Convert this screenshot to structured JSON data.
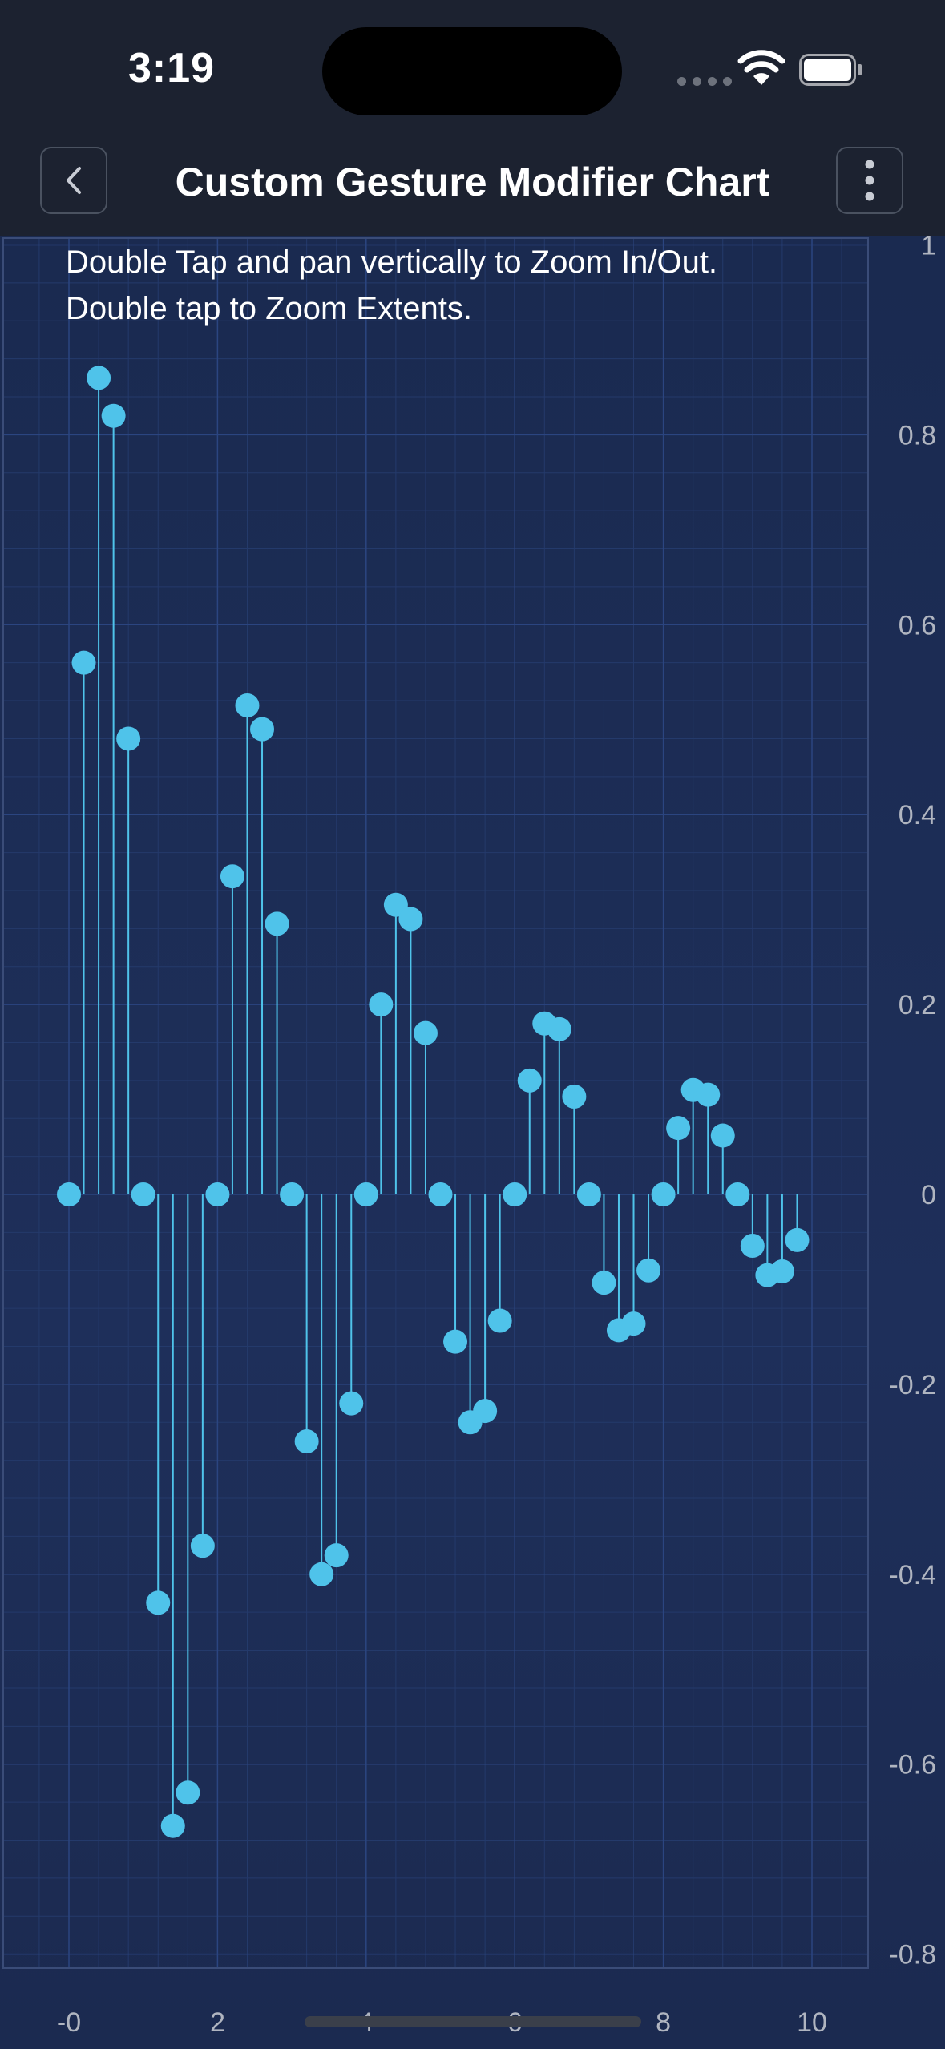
{
  "status_bar": {
    "time": "3:19"
  },
  "nav": {
    "title": "Custom Gesture Modifier Chart",
    "back_icon": "chevron-left-icon",
    "more_icon": "vertical-ellipsis-icon"
  },
  "instructions": {
    "line1": "Double Tap and pan vertically to Zoom In/Out.",
    "line2": "Double tap to Zoom Extents."
  },
  "colors": {
    "background": "#1c2230",
    "chart_bg": "#1e2f5a",
    "stem": "#4fc3ea",
    "marker": "#4fc3ea",
    "tick_label": "#b0b5c0"
  },
  "chart_data": {
    "type": "scatter",
    "style": "stem with circular markers",
    "x_tick_labels": [
      "-0",
      "2",
      "4",
      "6",
      "8",
      "10"
    ],
    "y_tick_labels": [
      "1",
      "0.8",
      "0.6",
      "0.4",
      "0.2",
      "0",
      "-0.2",
      "-0.4",
      "-0.6",
      "-0.8"
    ],
    "y_axis_position": "right",
    "xlim": [
      -0.4,
      10.7
    ],
    "ylim": [
      -0.82,
      1.02
    ],
    "grid": true,
    "series": [
      {
        "x": [
          0,
          0.2,
          0.4,
          0.6,
          0.8,
          1,
          1.2,
          1.4,
          1.6,
          1.8,
          2,
          2.2,
          2.4,
          2.6,
          2.8,
          3,
          3.2,
          3.4,
          3.6,
          3.8,
          4,
          4.2,
          4.4,
          4.6,
          4.8,
          5,
          5.2,
          5.4,
          5.6,
          5.8,
          6,
          6.2,
          6.4,
          6.6,
          6.8,
          7,
          7.2,
          7.4,
          7.6,
          7.8,
          8,
          8.2,
          8.4,
          8.6,
          8.8,
          9,
          9.2,
          9.4,
          9.6,
          9.8
        ],
        "y": [
          0,
          0.56,
          0.86,
          0.82,
          0.48,
          0,
          -0.43,
          -0.665,
          -0.63,
          -0.37,
          0,
          0.335,
          0.515,
          0.49,
          0.285,
          0,
          -0.26,
          -0.4,
          -0.38,
          -0.22,
          0,
          0.2,
          0.305,
          0.29,
          0.17,
          0,
          -0.155,
          -0.24,
          -0.228,
          -0.133,
          0,
          0.12,
          0.18,
          0.174,
          0.103,
          0,
          -0.093,
          -0.143,
          -0.136,
          -0.08,
          0,
          0.07,
          0.11,
          0.105,
          0.062,
          0,
          -0.054,
          -0.085,
          -0.081,
          -0.048
        ]
      }
    ]
  }
}
